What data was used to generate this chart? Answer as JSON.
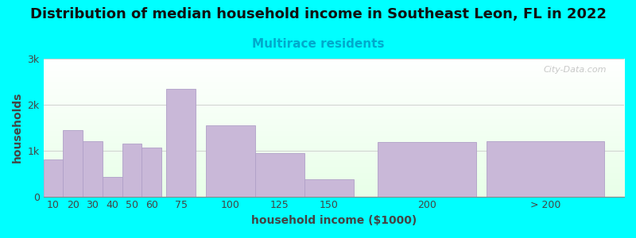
{
  "title": "Distribution of median household income in Southeast Leon, FL in 2022",
  "subtitle": "Multirace residents",
  "xlabel": "household income ($1000)",
  "ylabel": "households",
  "background_color": "#00FFFF",
  "plot_bg_color_top": "#e8ffe8",
  "bar_color": "#c9b8d8",
  "bar_edge_color": "#b0a0c8",
  "bar_centers": [
    10,
    20,
    30,
    40,
    50,
    60,
    75,
    100,
    125,
    150,
    200,
    260
  ],
  "bar_widths": [
    10,
    10,
    10,
    10,
    10,
    10,
    15,
    25,
    25,
    25,
    50,
    60
  ],
  "values": [
    800,
    1450,
    1200,
    420,
    1150,
    1070,
    2350,
    1550,
    950,
    380,
    1180,
    1200
  ],
  "xlim": [
    5,
    300
  ],
  "xtick_positions": [
    10,
    20,
    30,
    40,
    50,
    60,
    75,
    100,
    125,
    150,
    200,
    260
  ],
  "xtick_labels": [
    "10",
    "20",
    "30",
    "40",
    "50",
    "60",
    "75",
    "100",
    "125",
    "150",
    "200",
    "> 200"
  ],
  "ylim": [
    0,
    3000
  ],
  "yticks": [
    0,
    1000,
    2000,
    3000
  ],
  "ytick_labels": [
    "0",
    "1k",
    "2k",
    "3k"
  ],
  "title_fontsize": 13,
  "subtitle_fontsize": 11,
  "axis_label_fontsize": 10,
  "tick_fontsize": 9,
  "watermark_text": "City-Data.com"
}
